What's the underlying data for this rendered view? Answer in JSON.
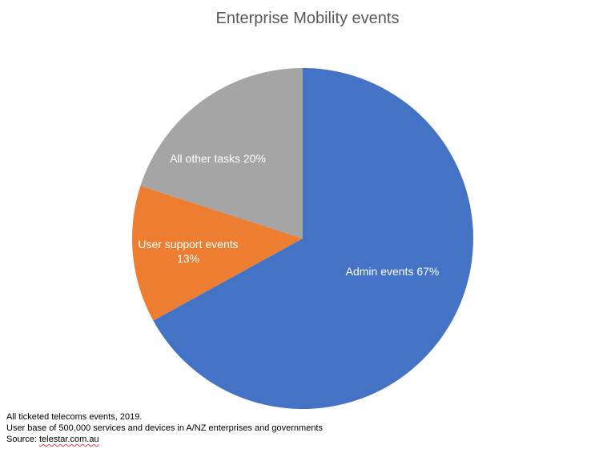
{
  "chart_data": {
    "type": "pie",
    "title": "Enterprise Mobility events",
    "slices": [
      {
        "name": "Admin events",
        "value": 67,
        "color": "#4472c4",
        "label_lines": [
          "Admin events 67%"
        ]
      },
      {
        "name": "User support events",
        "value": 13,
        "color": "#ed7d31",
        "label_lines": [
          "User support events",
          "13%"
        ]
      },
      {
        "name": "All other tasks",
        "value": 20,
        "color": "#a5a5a5",
        "label_lines": [
          "All other tasks 20%"
        ]
      }
    ],
    "start": "12 o'clock",
    "direction": "clockwise",
    "legend": "none"
  },
  "notes": {
    "line1": "All ticketed telecoms events, 2019.",
    "line2": "User base of 500,000 services and devices in A/NZ enterprises and governments",
    "source_prefix": "Source: ",
    "source_link": "telestar.com.au"
  }
}
